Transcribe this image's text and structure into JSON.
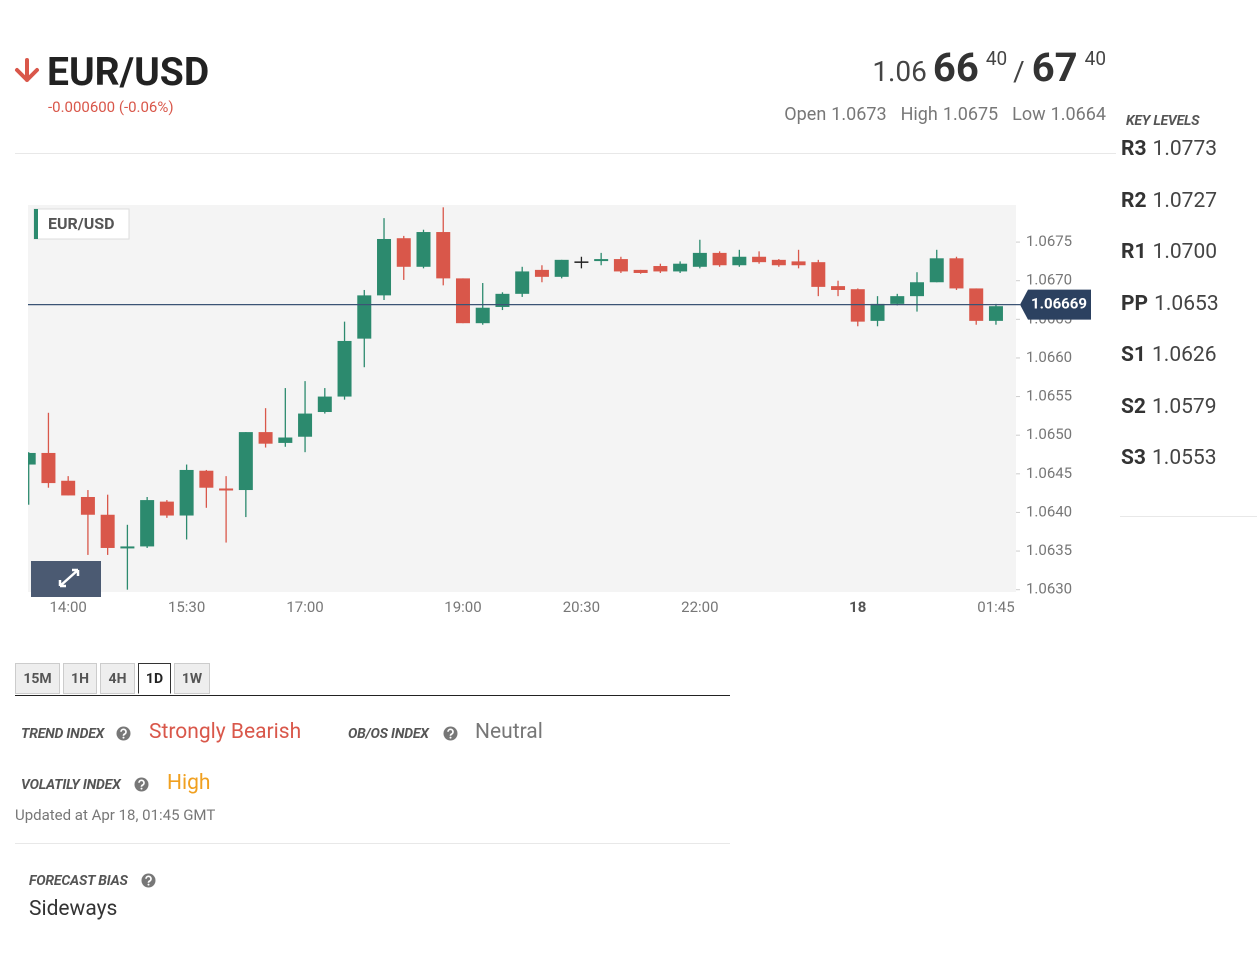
{
  "header": {
    "symbol": "EUR/USD",
    "change": "-0.000600 (-0.06%)",
    "price": {
      "base": "1.06",
      "bid_big": "66",
      "bid_pip": "40",
      "separator": "/",
      "ask_big": "67",
      "ask_pip": "40"
    },
    "stats": [
      {
        "label": "Open",
        "value": "1.0673"
      },
      {
        "label": "High",
        "value": "1.0675"
      },
      {
        "label": "Low",
        "value": "1.0664"
      }
    ]
  },
  "key_levels": {
    "title": "KEY LEVELS",
    "levels": [
      {
        "name": "R3",
        "value": "1.0773"
      },
      {
        "name": "R2",
        "value": "1.0727"
      },
      {
        "name": "R1",
        "value": "1.0700"
      },
      {
        "name": "PP",
        "value": "1.0653"
      },
      {
        "name": "S1",
        "value": "1.0626"
      },
      {
        "name": "S2",
        "value": "1.0579"
      },
      {
        "name": "S3",
        "value": "1.0553"
      }
    ]
  },
  "chart_data": {
    "type": "candlestick",
    "label": "EUR/USD",
    "categories": [
      null,
      null,
      "14:00",
      null,
      null,
      null,
      null,
      null,
      "15:30",
      null,
      null,
      null,
      null,
      null,
      "17:00",
      null,
      null,
      null,
      null,
      null,
      null,
      null,
      "19:00",
      null,
      null,
      null,
      null,
      null,
      "20:30",
      null,
      null,
      null,
      null,
      null,
      "22:00",
      null,
      null,
      null,
      null,
      null,
      null,
      null,
      "18",
      null,
      null,
      null,
      null,
      null,
      null,
      "01:45"
    ],
    "open": [
      1.06462,
      1.06477,
      1.06441,
      1.0642,
      1.06397,
      1.06354,
      1.06356,
      1.06414,
      1.06396,
      1.06454,
      1.06431,
      1.06429,
      1.06504,
      1.0649,
      1.06498,
      1.0653,
      1.0655,
      1.06625,
      1.06681,
      1.06755,
      1.06718,
      1.06763,
      1.06703,
      1.06645,
      1.06666,
      1.06683,
      1.06714,
      1.06705,
      1.06724,
      1.06727,
      1.06728,
      1.06714,
      1.06719,
      1.06712,
      1.06718,
      1.06736,
      1.0672,
      1.06731,
      1.06727,
      1.06725,
      1.06724,
      1.06693,
      1.06689,
      1.06648,
      1.0667,
      1.0668,
      1.06698,
      1.06729,
      1.0669,
      1.06648
    ],
    "high": [
      1.06478,
      1.06529,
      1.06447,
      1.06429,
      1.06423,
      1.06384,
      1.0642,
      1.06416,
      1.06462,
      1.06455,
      1.06447,
      1.06504,
      1.06535,
      1.06561,
      1.0657,
      1.06561,
      1.06647,
      1.06688,
      1.06781,
      1.06758,
      1.06766,
      1.06795,
      1.06703,
      1.06697,
      1.06685,
      1.06718,
      1.0672,
      1.06727,
      1.06731,
      1.06736,
      1.06731,
      1.06714,
      1.06722,
      1.06725,
      1.06753,
      1.06738,
      1.0674,
      1.06738,
      1.06728,
      1.0674,
      1.06727,
      1.067,
      1.0669,
      1.0668,
      1.06683,
      1.06711,
      1.0674,
      1.06731,
      1.0669,
      1.0667
    ],
    "low": [
      1.0641,
      1.06432,
      1.06422,
      1.06345,
      1.06345,
      1.063,
      1.06354,
      1.06393,
      1.06365,
      1.06406,
      1.06361,
      1.06394,
      1.06484,
      1.06485,
      1.06478,
      1.06528,
      1.06546,
      1.06588,
      1.06675,
      1.06701,
      1.06716,
      1.06694,
      1.06645,
      1.06643,
      1.06662,
      1.06679,
      1.06698,
      1.06703,
      1.06716,
      1.0672,
      1.0671,
      1.06709,
      1.0671,
      1.0671,
      1.06716,
      1.06718,
      1.06718,
      1.06722,
      1.06718,
      1.06716,
      1.0668,
      1.0668,
      1.06641,
      1.06641,
      1.06668,
      1.0666,
      1.06698,
      1.06688,
      1.06643,
      1.06643
    ],
    "close": [
      1.06477,
      1.06438,
      1.06422,
      1.06397,
      1.06354,
      1.06356,
      1.06416,
      1.06396,
      1.06455,
      1.06432,
      1.06429,
      1.06504,
      1.06489,
      1.06497,
      1.06528,
      1.0655,
      1.06622,
      1.06681,
      1.06754,
      1.06718,
      1.06763,
      1.06703,
      1.06645,
      1.06665,
      1.06683,
      1.06712,
      1.06705,
      1.06727,
      1.06724,
      1.06728,
      1.06712,
      1.0671,
      1.06712,
      1.06722,
      1.06736,
      1.0672,
      1.06731,
      1.06724,
      1.0672,
      1.0672,
      1.06692,
      1.06688,
      1.06647,
      1.0667,
      1.0668,
      1.06698,
      1.06729,
      1.0669,
      1.06648,
      1.06667
    ],
    "up_color": "#2c8a6e",
    "down_color": "#d9574a",
    "doji_color": "#222222",
    "last_price": 1.06669,
    "ylim": [
      1.06297,
      1.06798
    ],
    "yticks": [
      {
        "value": 1.063,
        "label": "1.0630"
      },
      1.0635,
      {
        "value": 1.064,
        "label": "1.0640"
      },
      1.0645,
      {
        "value": 1.065,
        "label": "1.0650"
      },
      1.0655,
      {
        "value": 1.066,
        "label": "1.0660"
      },
      1.0665,
      {
        "value": 1.067,
        "label": "1.0670"
      },
      1.0675
    ]
  },
  "timeframes": {
    "tabs": [
      "15M",
      "1H",
      "4H",
      "1D",
      "1W"
    ],
    "active": 3
  },
  "indices": {
    "trend": {
      "label": "TREND INDEX",
      "value": "Strongly Bearish"
    },
    "obos": {
      "label": "OB/OS INDEX",
      "value": "Neutral"
    },
    "volatility": {
      "label": "VOLATILY INDEX",
      "value": "High"
    },
    "updated": "Updated at Apr 18, 01:45 GMT"
  },
  "forecast": {
    "label": "FORECAST BIAS",
    "value": "Sideways"
  }
}
